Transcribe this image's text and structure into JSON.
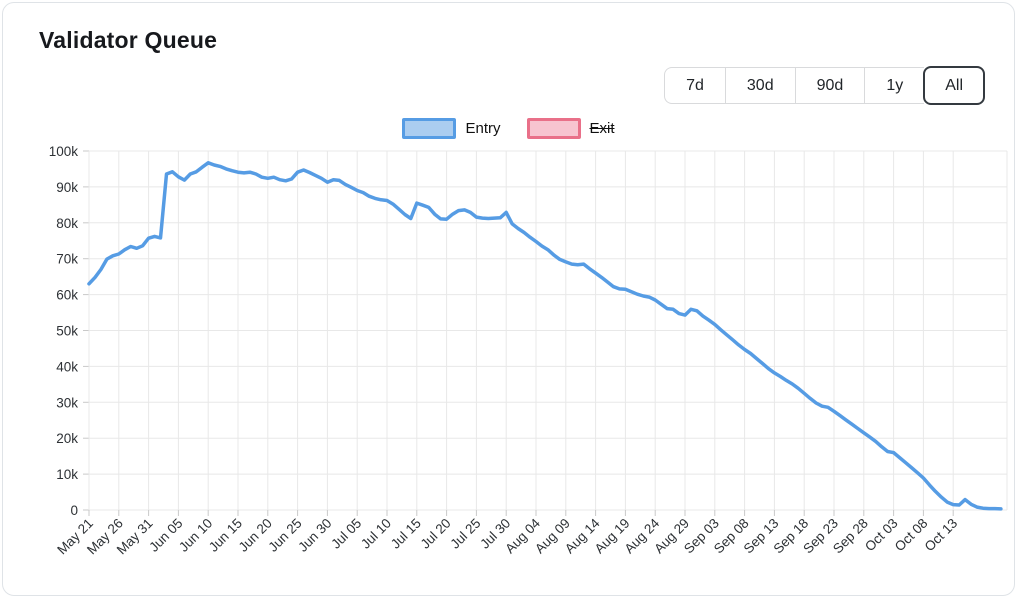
{
  "card": {
    "title": "Validator Queue"
  },
  "range_buttons": [
    {
      "label": "7d",
      "selected": false
    },
    {
      "label": "30d",
      "selected": false
    },
    {
      "label": "90d",
      "selected": false
    },
    {
      "label": "1y",
      "selected": false
    },
    {
      "label": "All",
      "selected": true
    }
  ],
  "legend": [
    {
      "label": "Entry",
      "border_color": "#569ce4",
      "fill_color": "#abcdf0",
      "disabled": false
    },
    {
      "label": "Exit",
      "border_color": "#e97089",
      "fill_color": "#f7c4d0",
      "disabled": true
    }
  ],
  "chart_data": {
    "type": "line",
    "title": "Validator Queue",
    "xlabel": "",
    "ylabel": "",
    "x_start_label": "May 21",
    "x_frequency": "daily",
    "x_tick_labels": [
      "May 21",
      "May 26",
      "May 31",
      "Jun 05",
      "Jun 10",
      "Jun 15",
      "Jun 20",
      "Jun 25",
      "Jun 30",
      "Jul 05",
      "Jul 10",
      "Jul 15",
      "Jul 20",
      "Jul 25",
      "Jul 30",
      "Aug 04",
      "Aug 09",
      "Aug 14",
      "Aug 19",
      "Aug 24",
      "Aug 29",
      "Sep 03",
      "Sep 08",
      "Sep 13",
      "Sep 18",
      "Sep 23",
      "Sep 28",
      "Oct 03",
      "Oct 08",
      "Oct 13"
    ],
    "x_tick_interval_days": 5,
    "y_tick_labels": [
      "0",
      "10k",
      "20k",
      "30k",
      "40k",
      "50k",
      "60k",
      "70k",
      "80k",
      "90k",
      "100k"
    ],
    "ylim_thousands": [
      0,
      100
    ],
    "grid": true,
    "legend_position": "top",
    "series": [
      {
        "name": "Entry",
        "color": "#569ce4",
        "visible": true,
        "values_thousands": [
          63.0,
          64.8,
          67.0,
          69.9,
          70.8,
          71.3,
          72.5,
          73.4,
          72.9,
          73.6,
          75.7,
          76.2,
          75.8,
          93.6,
          94.2,
          92.8,
          91.9,
          93.6,
          94.2,
          95.5,
          96.7,
          96.1,
          95.7,
          95.0,
          94.5,
          94.1,
          93.9,
          94.1,
          93.6,
          92.7,
          92.4,
          92.7,
          92.0,
          91.7,
          92.2,
          94.1,
          94.7,
          94.0,
          93.2,
          92.4,
          91.3,
          92.0,
          91.8,
          90.7,
          89.9,
          89.0,
          88.4,
          87.4,
          86.8,
          86.4,
          86.2,
          85.2,
          83.8,
          82.3,
          81.2,
          85.5,
          84.9,
          84.3,
          82.4,
          81.1,
          81.0,
          82.4,
          83.4,
          83.6,
          82.9,
          81.6,
          81.3,
          81.2,
          81.3,
          81.4,
          82.9,
          79.7,
          78.4,
          77.3,
          76.0,
          74.8,
          73.5,
          72.5,
          71.0,
          69.8,
          69.1,
          68.5,
          68.3,
          68.5,
          67.2,
          66.0,
          64.8,
          63.5,
          62.2,
          61.6,
          61.5,
          60.8,
          60.1,
          59.6,
          59.3,
          58.5,
          57.3,
          56.1,
          55.9,
          54.7,
          54.3,
          55.9,
          55.5,
          54.0,
          52.9,
          51.7,
          50.2,
          48.8,
          47.4,
          46.0,
          44.7,
          43.6,
          42.2,
          40.8,
          39.4,
          38.2,
          37.2,
          36.1,
          35.1,
          33.9,
          32.5,
          31.1,
          29.8,
          28.9,
          28.6,
          27.5,
          26.3,
          25.1,
          23.9,
          22.7,
          21.5,
          20.3,
          19.1,
          17.6,
          16.3,
          16.0,
          14.6,
          13.2,
          11.8,
          10.4,
          8.9,
          7.0,
          5.2,
          3.6,
          2.2,
          1.5,
          1.4,
          2.9,
          1.6,
          0.8,
          0.5,
          0.4,
          0.4,
          0.3
        ]
      },
      {
        "name": "Exit",
        "color": "#e97089",
        "visible": false,
        "values_thousands": []
      }
    ]
  },
  "colors": {
    "grid": "#e8e8e8",
    "tick_text": "#2d3135",
    "axis_tick": "#c9c9c9",
    "entry_line": "#569ce4",
    "card_border": "#dfe3e7",
    "selected_button_border": "#343a40"
  }
}
